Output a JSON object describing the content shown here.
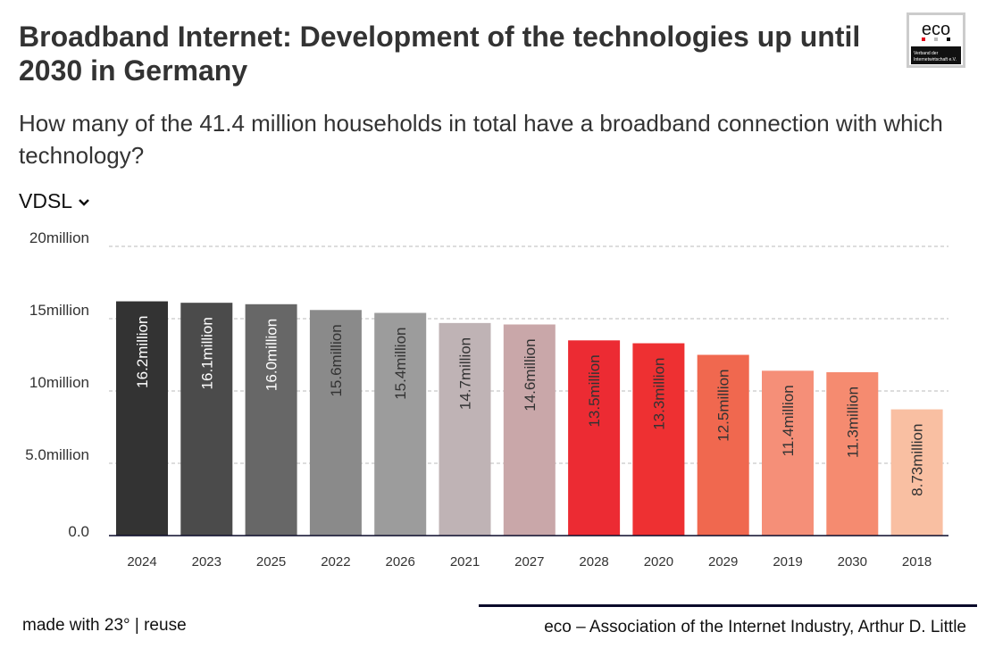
{
  "header": {
    "title": "Broadband Internet: Development of the technologies up until 2030 in Germany",
    "subtitle": "How many of the 41.4 million households in total have a broadband connection with which technology?",
    "dropdown_value": "VDSL",
    "logo_text": "eco",
    "logo_subtext": "Verband der Internetwirtschaft e.V."
  },
  "footer": {
    "made_with": "made with 23°",
    "separator": " | ",
    "reuse": "reuse",
    "source": "eco – Association of the Internet Industry, Arthur D. Little"
  },
  "chart_data": {
    "type": "bar",
    "title": "",
    "xlabel": "",
    "ylabel": "",
    "ylim": [
      0,
      20
    ],
    "grid": true,
    "yticks": [
      {
        "value": 0,
        "label": "0.0"
      },
      {
        "value": 5,
        "label": "5.0million"
      },
      {
        "value": 10,
        "label": "10million"
      },
      {
        "value": 15,
        "label": "15million"
      },
      {
        "value": 20,
        "label": "20million"
      }
    ],
    "categories": [
      "2024",
      "2023",
      "2025",
      "2022",
      "2026",
      "2021",
      "2027",
      "2028",
      "2020",
      "2029",
      "2019",
      "2030",
      "2018"
    ],
    "values": [
      16.2,
      16.1,
      16.0,
      15.6,
      15.4,
      14.7,
      14.6,
      13.5,
      13.3,
      12.5,
      11.4,
      11.3,
      8.73
    ],
    "labels": [
      "16.2million",
      "16.1million",
      "16.0million",
      "15.6million",
      "15.4million",
      "14.7million",
      "14.6million",
      "13.5million",
      "13.3million",
      "12.5million",
      "11.4million",
      "11.3million",
      "8.73million"
    ],
    "colors": [
      "#333333",
      "#4b4b4b",
      "#676767",
      "#8a8a8a",
      "#9c9c9c",
      "#bfb3b5",
      "#c9a7a9",
      "#ec2b33",
      "#ee3032",
      "#f0684f",
      "#f58f78",
      "#f58b70",
      "#f9bfa2"
    ],
    "label_colors": [
      "#ffffff",
      "#ffffff",
      "#ffffff",
      "#333333",
      "#333333",
      "#333333",
      "#333333",
      "#333333",
      "#333333",
      "#333333",
      "#333333",
      "#333333",
      "#333333"
    ]
  }
}
